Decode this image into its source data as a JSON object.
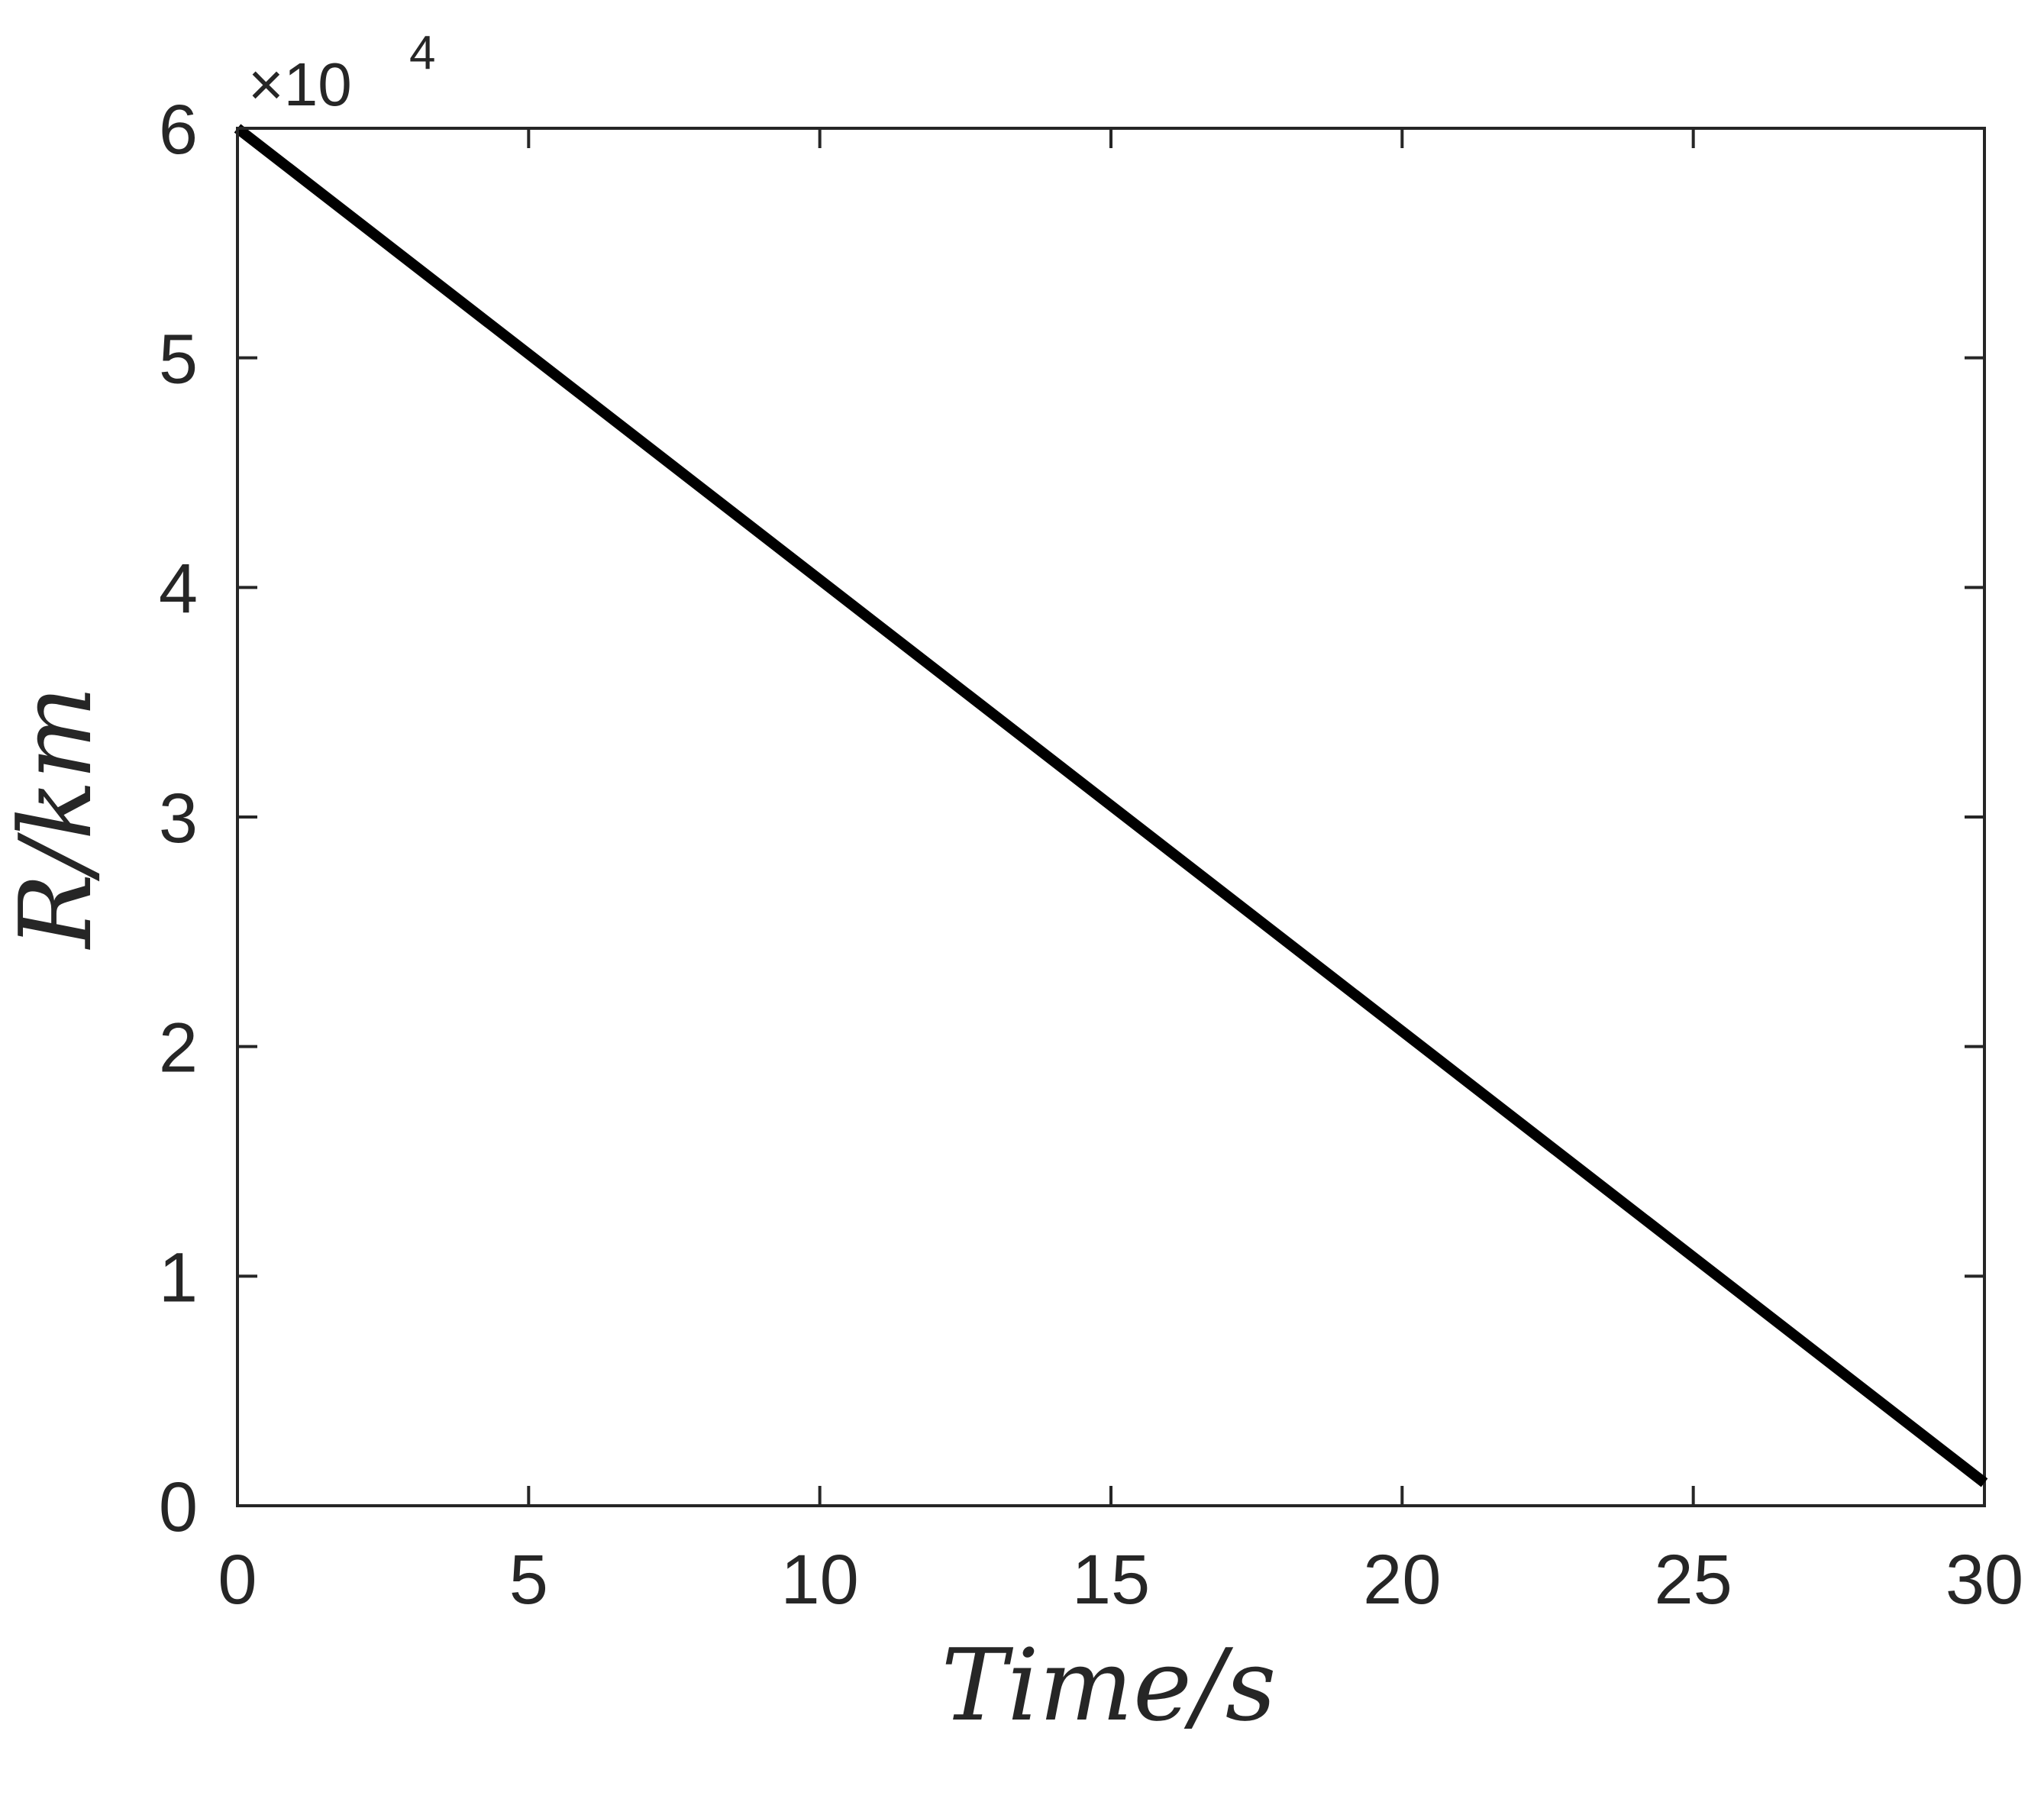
{
  "chart_data": {
    "type": "line",
    "title": "",
    "xlabel": "Time/s",
    "ylabel": "R/km",
    "xlim": [
      0,
      30
    ],
    "ylim": [
      0,
      6
    ],
    "y_multiplier_label": "×10",
    "y_multiplier_exponent": "4",
    "x_ticks": [
      0,
      5,
      10,
      15,
      20,
      25,
      30
    ],
    "y_ticks": [
      0,
      1,
      2,
      3,
      4,
      5,
      6
    ],
    "x_tick_labels": [
      "0",
      "5",
      "10",
      "15",
      "20",
      "25",
      "30"
    ],
    "y_tick_labels": [
      "0",
      "1",
      "2",
      "3",
      "4",
      "5",
      "6"
    ],
    "grid": false,
    "box": true,
    "series": [
      {
        "x": [
          0,
          30
        ],
        "y": [
          6.0,
          0.1
        ],
        "color": "#000000"
      }
    ]
  }
}
